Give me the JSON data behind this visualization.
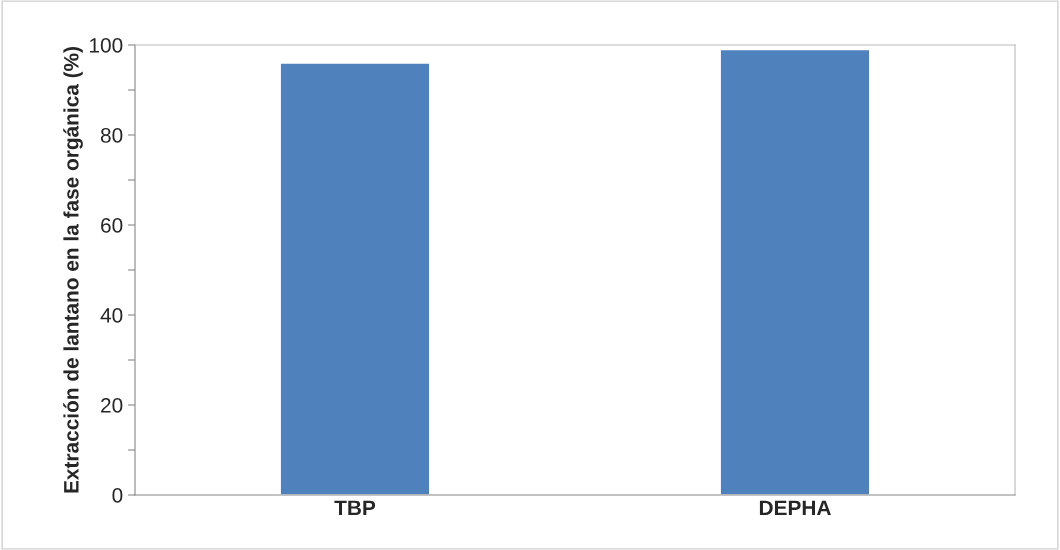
{
  "chart_data": {
    "type": "bar",
    "ylabel": "Extracción de lantano en la fase orgánica (%)",
    "categories": [
      "TBP",
      "DEPHA"
    ],
    "values": [
      96,
      99
    ],
    "color": "#4f81bd",
    "ylim": [
      0,
      100
    ],
    "yticks": [
      0,
      {
        "value": 10,
        "label": null
      },
      20,
      {
        "value": 30,
        "label": null
      },
      40,
      {
        "value": 50,
        "label": null
      },
      60,
      {
        "value": 70,
        "label": null
      },
      80,
      {
        "value": 90,
        "label": null
      },
      100
    ],
    "grid": false
  }
}
